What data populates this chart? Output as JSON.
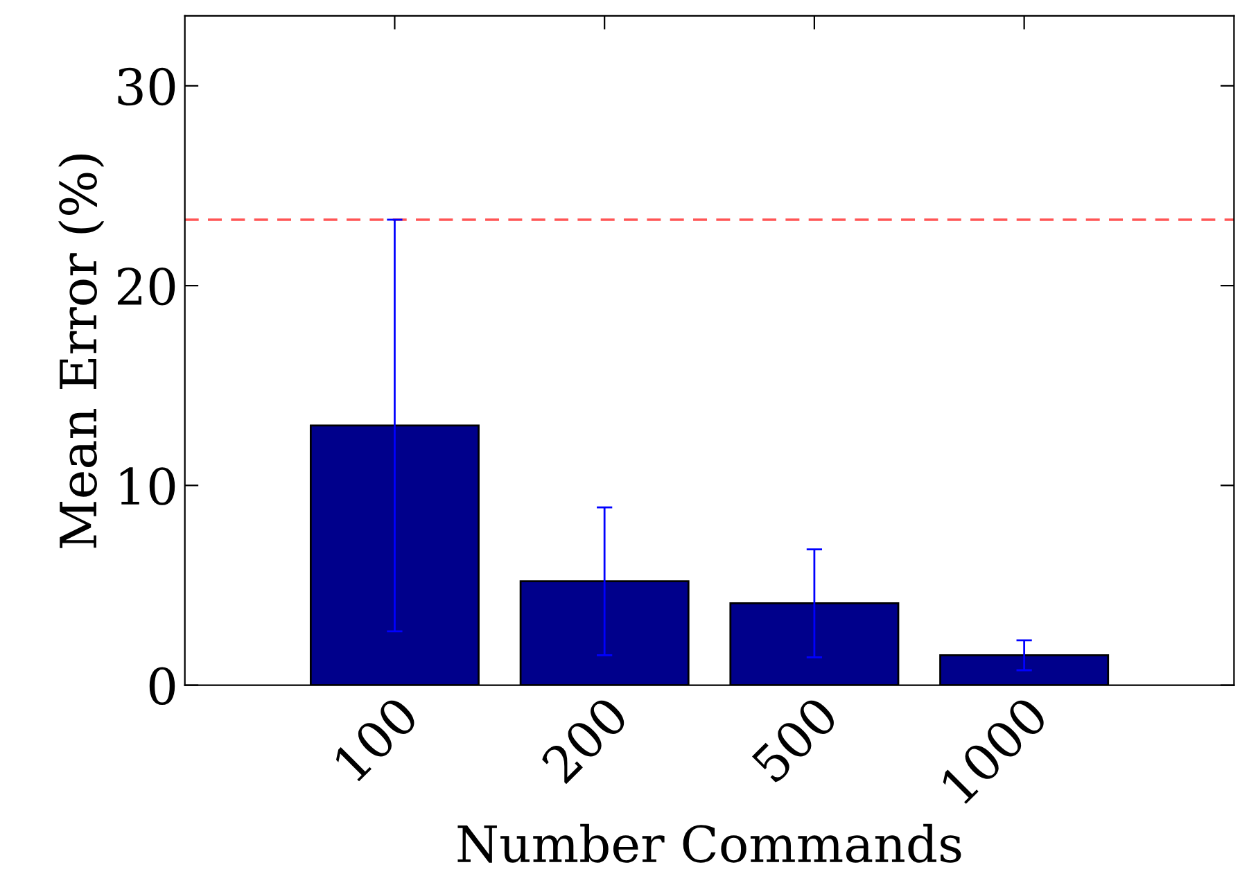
{
  "chart_data": {
    "type": "bar",
    "xlabel": "Number Commands",
    "ylabel": "Mean Error (%)",
    "categories": [
      "100",
      "200",
      "500",
      "1000"
    ],
    "values": [
      13.0,
      5.2,
      4.1,
      1.5
    ],
    "errors": [
      10.3,
      3.7,
      2.7,
      0.75
    ],
    "color": "#00008b",
    "ylim": [
      0,
      33.5
    ],
    "yticks": [
      0,
      10,
      20,
      30
    ],
    "ref_lines": [
      {
        "axis": "y",
        "value": 23.3,
        "color": "#ff5555",
        "line_style": "dashed"
      }
    ],
    "grid": false,
    "legend": false
  }
}
